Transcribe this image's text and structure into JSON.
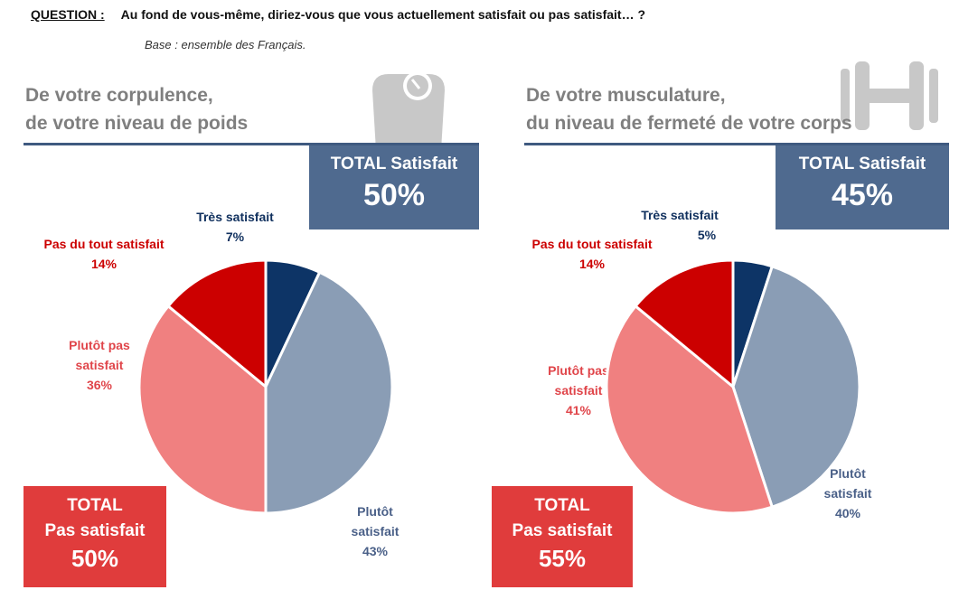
{
  "question_label": "QUESTION :",
  "question": "Au fond de vous-même, diriez-vous que vous actuellement satisfait ou pas satisfait… ?",
  "base": "Base : ensemble des Français.",
  "colors": {
    "tres": "#0d3466",
    "plutot_sat": "#8a9db5",
    "plutot_pas": "#f08080",
    "pas_du_tout": "#cc0000"
  },
  "chart_data": [
    {
      "type": "pie",
      "title_line1": "De votre corpulence,",
      "title_line2": "de votre niveau de poids",
      "icon": "scale-icon",
      "total_satisfait_label": "TOTAL Satisfait",
      "total_satisfait": "50%",
      "total_pas_label1": "TOTAL",
      "total_pas_label2": "Pas satisfait",
      "total_pas": "50%",
      "slices": [
        {
          "label": "Très satisfait",
          "label2": "",
          "value": 7,
          "text": "7%"
        },
        {
          "label": "Plutôt",
          "label2": "satisfait",
          "value": 43,
          "text": "43%"
        },
        {
          "label": "Plutôt pas",
          "label2": "satisfait",
          "value": 36,
          "text": "36%"
        },
        {
          "label": "Pas du tout satisfait",
          "label2": "",
          "value": 14,
          "text": "14%"
        }
      ]
    },
    {
      "type": "pie",
      "title_line1": "De votre musculature,",
      "title_line2": "du niveau de fermeté de votre corps",
      "icon": "dumbbell-icon",
      "total_satisfait_label": "TOTAL Satisfait",
      "total_satisfait": "45%",
      "total_pas_label1": "TOTAL",
      "total_pas_label2": "Pas satisfait",
      "total_pas": "55%",
      "slices": [
        {
          "label": "Très satisfait",
          "label2": "",
          "value": 5,
          "text": "5%"
        },
        {
          "label": "Plutôt",
          "label2": "satisfait",
          "value": 40,
          "text": "40%"
        },
        {
          "label": "Plutôt pas",
          "label2": "satisfait",
          "value": 41,
          "text": "41%"
        },
        {
          "label": "Pas du tout satisfait",
          "label2": "",
          "value": 14,
          "text": "14%"
        }
      ]
    }
  ]
}
